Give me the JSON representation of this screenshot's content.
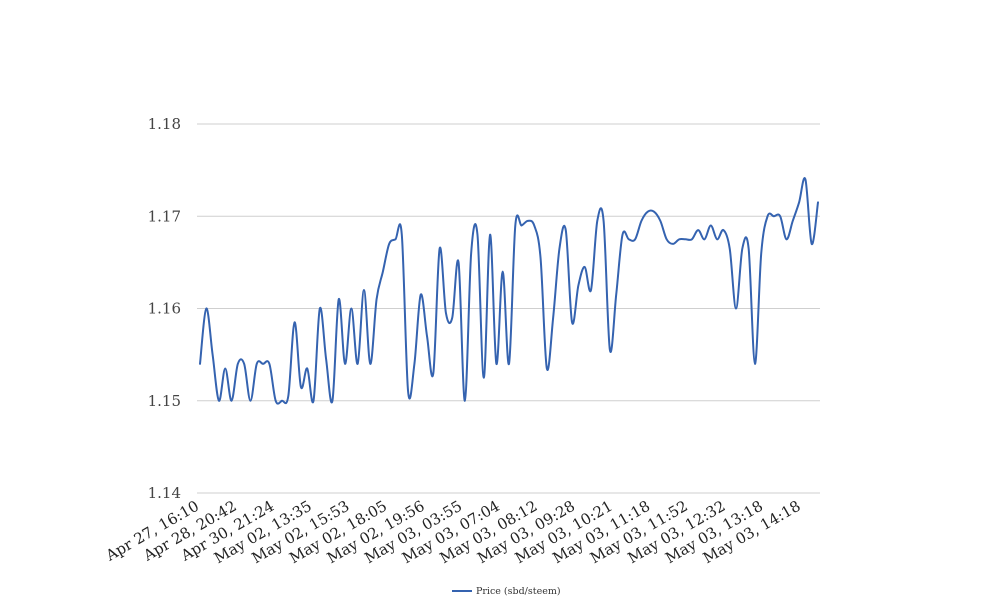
{
  "chart_data": {
    "type": "line",
    "title": "",
    "xlabel": "",
    "ylabel": "",
    "ylim": [
      1.14,
      1.18
    ],
    "y_ticks": [
      "1.14",
      "1.15",
      "1.16",
      "1.17",
      "1.18"
    ],
    "grid": true,
    "legend_placement": "bottom",
    "x_tick_labels": [
      "Apr 27, 16:10",
      "Apr 28, 20:42",
      "Apr 30, 21:24",
      "May 02, 13:35",
      "May 02, 15:53",
      "May 02, 18:05",
      "May 02, 19:56",
      "May 03, 03:55",
      "May 03, 07:04",
      "May 03, 08:12",
      "May 03, 09:28",
      "May 03, 10:21",
      "May 03, 11:18",
      "May 03, 11:52",
      "May 03, 12:32",
      "May 03, 13:18",
      "May 03, 14:18"
    ],
    "series": [
      {
        "name": "Price (sbd/steem)",
        "color": "#3563b0",
        "values": [
          1.154,
          1.16,
          1.155,
          1.15,
          1.1535,
          1.15,
          1.154,
          1.154,
          1.15,
          1.154,
          1.154,
          1.154,
          1.15,
          1.15,
          1.1505,
          1.1585,
          1.1515,
          1.1535,
          1.15,
          1.16,
          1.1545,
          1.15,
          1.161,
          1.154,
          1.16,
          1.154,
          1.162,
          1.154,
          1.161,
          1.164,
          1.167,
          1.1675,
          1.168,
          1.151,
          1.154,
          1.1615,
          1.157,
          1.153,
          1.1665,
          1.1595,
          1.159,
          1.165,
          1.15,
          1.166,
          1.168,
          1.1525,
          1.168,
          1.154,
          1.164,
          1.154,
          1.169,
          1.169,
          1.1695,
          1.169,
          1.1655,
          1.1535,
          1.159,
          1.1665,
          1.1685,
          1.1585,
          1.1625,
          1.1645,
          1.162,
          1.1695,
          1.1695,
          1.1555,
          1.1615,
          1.168,
          1.1675,
          1.1675,
          1.1695,
          1.1705,
          1.1705,
          1.1695,
          1.1675,
          1.167,
          1.1675,
          1.1675,
          1.1675,
          1.1685,
          1.1675,
          1.169,
          1.1675,
          1.1685,
          1.1665,
          1.16,
          1.1665,
          1.1665,
          1.154,
          1.166,
          1.17,
          1.17,
          1.17,
          1.1675,
          1.1695,
          1.1715,
          1.174,
          1.167,
          1.1715
        ]
      }
    ]
  }
}
